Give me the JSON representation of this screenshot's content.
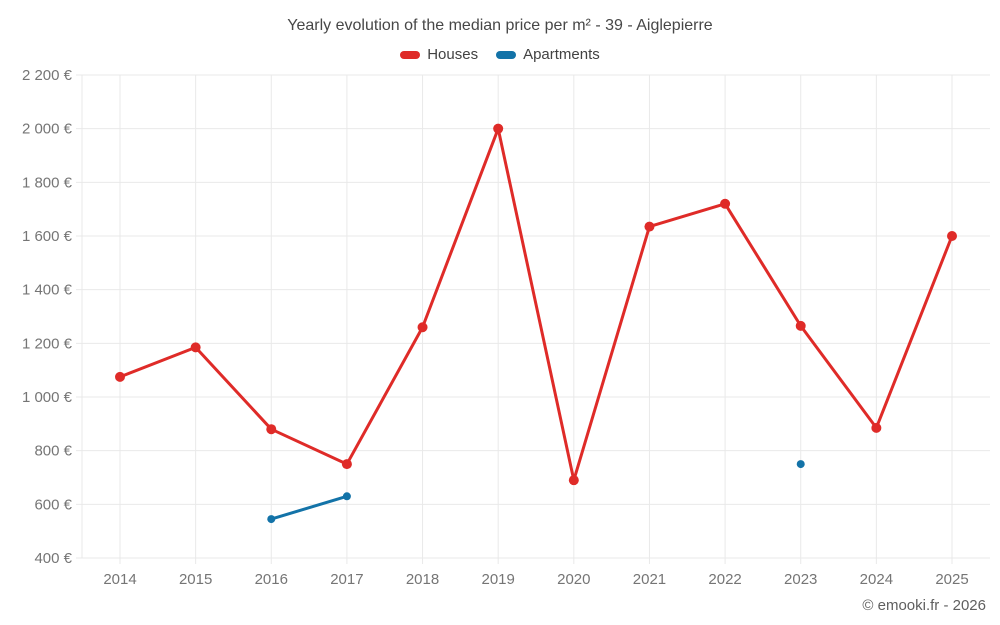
{
  "footer": {
    "credit": "© emooki.fr - 2026"
  },
  "chart_data": {
    "type": "line",
    "title": "Yearly evolution of the median price per m² - 39 - Aiglepierre",
    "x": [
      2014,
      2015,
      2016,
      2017,
      2018,
      2019,
      2020,
      2021,
      2022,
      2023,
      2024,
      2025
    ],
    "series": [
      {
        "name": "Houses",
        "color": "#df2b28",
        "marker_radius": 5,
        "values": [
          1075,
          1185,
          880,
          750,
          1260,
          2000,
          690,
          1635,
          1720,
          1265,
          885,
          1600
        ]
      },
      {
        "name": "Apartments",
        "color": "#1373a8",
        "marker_radius": 4,
        "values": [
          null,
          null,
          545,
          630,
          null,
          null,
          null,
          null,
          null,
          750,
          null,
          null
        ]
      }
    ],
    "yticks": [
      {
        "value": 400,
        "label": "400 €"
      },
      {
        "value": 600,
        "label": "600 €"
      },
      {
        "value": 800,
        "label": "800 €"
      },
      {
        "value": 1000,
        "label": "1 000 €"
      },
      {
        "value": 1200,
        "label": "1 200 €"
      },
      {
        "value": 1400,
        "label": "1 400 €"
      },
      {
        "value": 1600,
        "label": "1 600 €"
      },
      {
        "value": 1800,
        "label": "1 800 €"
      },
      {
        "value": 2000,
        "label": "2 000 €"
      },
      {
        "value": 2200,
        "label": "2 200 €"
      }
    ],
    "ylim": [
      400,
      2200
    ],
    "currency": "€",
    "grid": true,
    "grid_color": "#e9e9e9",
    "legend_position": "top"
  }
}
